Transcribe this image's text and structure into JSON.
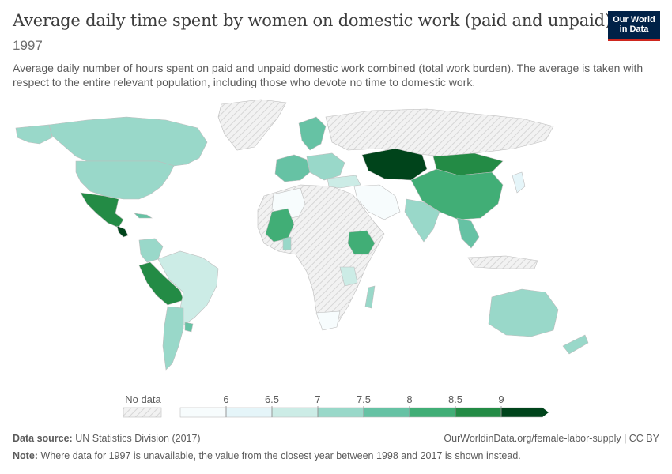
{
  "header": {
    "title": "Average daily time spent by women on domestic work (paid and unpaid)",
    "year": "1997",
    "subtitle": "Average daily number of hours spent on paid and unpaid domestic work combined (total work burden). The average is taken with respect to the entire relevant population, including those who devote no time to domestic work.",
    "logo_line1": "Our World",
    "logo_line2": "in Data"
  },
  "legend": {
    "no_data_label": "No data",
    "ticks": [
      "6",
      "6.5",
      "7",
      "7.5",
      "8",
      "8.5",
      "9"
    ],
    "bins": [
      {
        "color": "#f7fcfd"
      },
      {
        "color": "#e5f5f9"
      },
      {
        "color": "#ccece6"
      },
      {
        "color": "#99d8c9"
      },
      {
        "color": "#66c2a4"
      },
      {
        "color": "#41ae76"
      },
      {
        "color": "#238b45"
      },
      {
        "color": "#00441b"
      }
    ],
    "no_data_color": "#e8e8e8"
  },
  "colors": {
    "no_data": "#eeeeee",
    "border": "#bdbdbd"
  },
  "footer": {
    "source_label": "Data source:",
    "source_value": "UN Statistics Division (2017)",
    "url": "OurWorldinData.org/female-labor-supply | CC BY",
    "note_label": "Note:",
    "note_text": "Where data for 1997 is unavailable, the value from the closest year between 1998 and 2017 is shown instead."
  }
}
